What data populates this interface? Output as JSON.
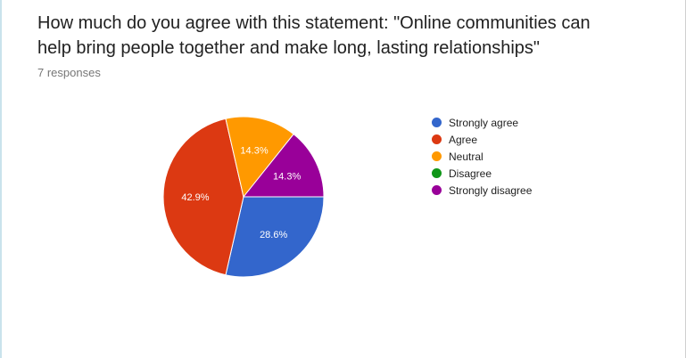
{
  "title": "How much do you agree with this statement: \"Online communities can help bring people together and make long, lasting relationships\"",
  "responses_label": "7 responses",
  "chart_data": {
    "type": "pie",
    "title": "How much do you agree with this statement: \"Online communities can help bring people together and make long, lasting relationships\"",
    "total_responses": 7,
    "categories": [
      "Strongly agree",
      "Agree",
      "Neutral",
      "Disagree",
      "Strongly disagree"
    ],
    "values": [
      2,
      3,
      1,
      0,
      1
    ],
    "percent_labels": [
      "28.6%",
      "42.9%",
      "14.3%",
      "",
      "14.3%"
    ],
    "colors": [
      "#3366cc",
      "#dc3912",
      "#ff9900",
      "#109618",
      "#990099"
    ],
    "legend_position": "right"
  }
}
